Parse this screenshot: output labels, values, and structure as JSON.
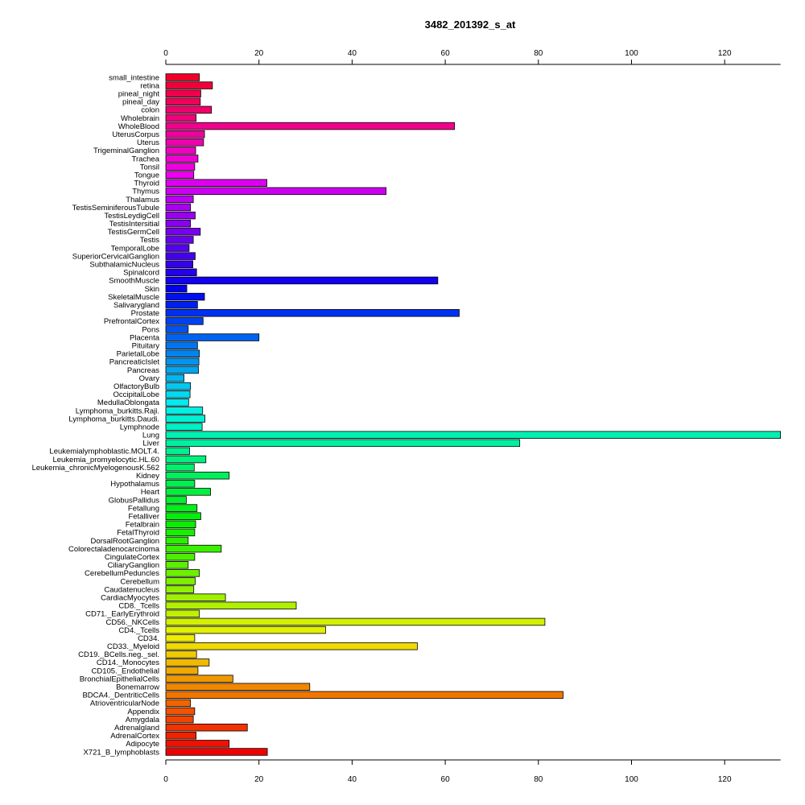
{
  "chart_data": {
    "type": "bar",
    "orientation": "horizontal",
    "title": "3482_201392_s_at",
    "xlabel": "",
    "ylabel": "",
    "xlim": [
      0,
      132
    ],
    "xticks": [
      0,
      20,
      40,
      60,
      80,
      100,
      120
    ],
    "grid": false,
    "categories": [
      "small_intestine",
      "retina",
      "pineal_night",
      "pineal_day",
      "colon",
      "Wholebrain",
      "WholeBlood",
      "UterusCorpus",
      "Uterus",
      "TrigeminalGanglion",
      "Trachea",
      "Tonsil",
      "Tongue",
      "Thyroid",
      "Thymus",
      "Thalamus",
      "TestisSeminiferousTubule",
      "TestisLeydigCell",
      "TestisIntersitial",
      "TestisGermCell",
      "Testis",
      "TemporalLobe",
      "SuperiorCervicalGanglion",
      "SubthalamicNucleus",
      "Spinalcord",
      "SmoothMuscle",
      "Skin",
      "SkeletalMuscle",
      "Salivarygland",
      "Prostate",
      "PrefrontalCortex",
      "Pons",
      "Placenta",
      "Pituitary",
      "ParietalLobe",
      "PancreaticIslet",
      "Pancreas",
      "Ovary",
      "OlfactoryBulb",
      "OccipitalLobe",
      "MedullaOblongata",
      "Lymphoma_burkitts.Raji.",
      "Lymphoma_burkitts.Daudi.",
      "Lymphnode",
      "Lung",
      "Liver",
      "Leukemialymphoblastic.MOLT.4.",
      "Leukemia_promyelocytic.HL.60",
      "Leukemia_chronicMyelogenousK.562",
      "Kidney",
      "Hypothalamus",
      "Heart",
      "GlobusPallidus",
      "Fetallung",
      "Fetalliver",
      "Fetalbrain",
      "FetalThyroid",
      "DorsalRootGanglion",
      "Colorectaladenocarcinoma",
      "CingulateCortex",
      "CiliaryGanglion",
      "CerebellumPeduncles",
      "Cerebellum",
      "Caudatenucleus",
      "CardiacMyocytes",
      "CD8._Tcells",
      "CD71._EarlyErythroid",
      "CD56._NKCells",
      "CD4._Tcells",
      "CD34.",
      "CD33._Myeloid",
      "CD19._BCells.neg._sel.",
      "CD14._Monocytes",
      "CD105._Endothelial",
      "BronchialEpithelialCells",
      "Bonemarrow",
      "BDCA4._DentriticCells",
      "AtrioventricularNode",
      "Appendix",
      "Amygdala",
      "Adrenalgland",
      "AdrenalCortex",
      "Adipocyte",
      "X721_B_lymphoblasts"
    ],
    "values": [
      7.2,
      10.0,
      7.5,
      7.4,
      9.8,
      6.5,
      62.0,
      8.3,
      8.1,
      6.4,
      6.9,
      6.2,
      6.0,
      21.7,
      47.3,
      5.9,
      5.3,
      6.3,
      5.3,
      7.4,
      5.9,
      5.0,
      6.3,
      5.8,
      6.6,
      58.4,
      4.5,
      8.3,
      6.8,
      63.0,
      8.0,
      4.8,
      20.0,
      6.8,
      7.2,
      7.1,
      7.0,
      3.9,
      5.3,
      5.2,
      4.9,
      7.9,
      8.4,
      7.8,
      133.0,
      76.0,
      5.1,
      8.6,
      6.1,
      13.6,
      6.2,
      9.6,
      4.4,
      6.7,
      7.5,
      6.4,
      6.2,
      4.8,
      11.9,
      6.2,
      4.8,
      7.2,
      6.3,
      6.0,
      12.8,
      28.0,
      7.2,
      81.4,
      34.3,
      6.2,
      54.0,
      6.6,
      9.3,
      6.9,
      14.4,
      30.9,
      85.3,
      5.3,
      6.2,
      5.9,
      17.5,
      6.5,
      13.6,
      21.8
    ]
  }
}
